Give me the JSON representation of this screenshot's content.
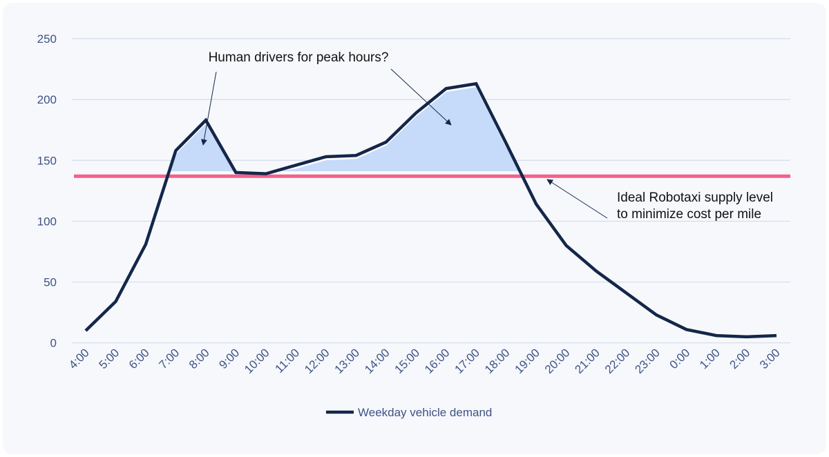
{
  "chart_data": {
    "type": "line",
    "title": "",
    "xlabel": "",
    "ylabel": "",
    "ylim": [
      0,
      250
    ],
    "yticks": [
      0,
      50,
      100,
      150,
      200,
      250
    ],
    "grid": true,
    "legend_placement": "bottom",
    "categories": [
      "4:00",
      "5:00",
      "6:00",
      "7:00",
      "8:00",
      "9:00",
      "10:00",
      "11:00",
      "12:00",
      "13:00",
      "14:00",
      "15:00",
      "16:00",
      "17:00",
      "18:00",
      "19:00",
      "20:00",
      "21:00",
      "22:00",
      "23:00",
      "0:00",
      "1:00",
      "2:00",
      "3:00"
    ],
    "series": [
      {
        "name": "Weekday vehicle demand",
        "color": "#14274a",
        "values": [
          10,
          34,
          81,
          158,
          183,
          140,
          139,
          146,
          153,
          154,
          165,
          189,
          209,
          213,
          164,
          114,
          80,
          59,
          41,
          23,
          11,
          6,
          5,
          6
        ]
      }
    ],
    "reference_line": {
      "value": 137,
      "color": "#f4608a"
    },
    "fill_color": "#c6dafa",
    "annotations": [
      {
        "text": "Human drivers for peak hours?"
      },
      {
        "lines": [
          "Ideal Robotaxi supply level",
          "to minimize cost per mile"
        ]
      }
    ]
  }
}
